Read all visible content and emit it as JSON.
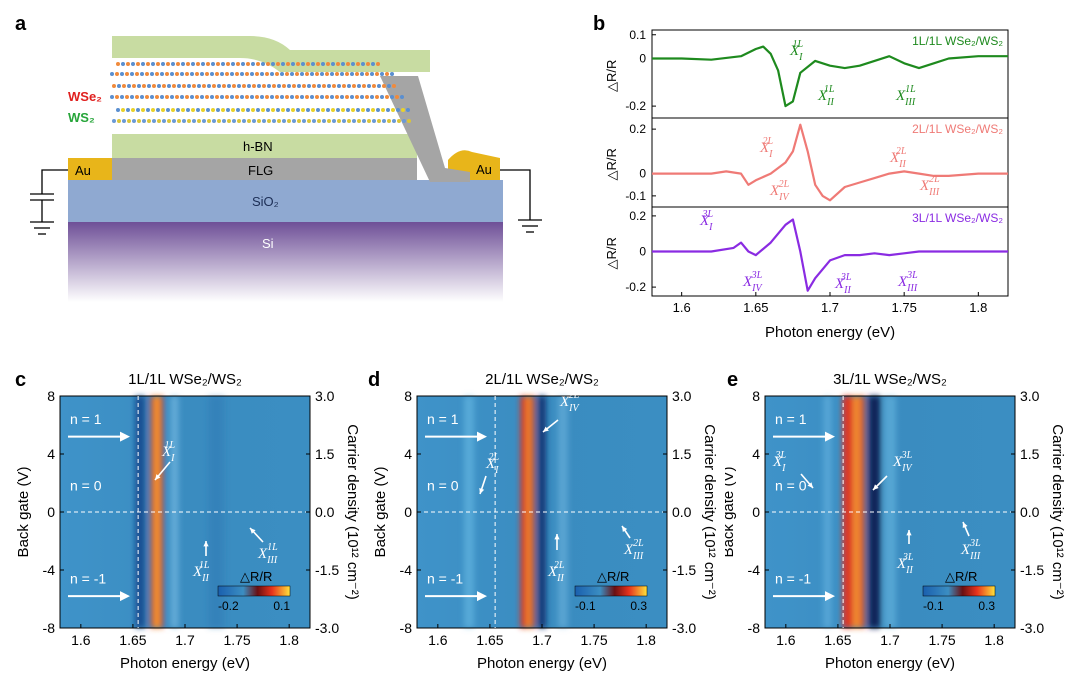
{
  "panel_labels": {
    "a": "a",
    "b": "b",
    "c": "c",
    "d": "d",
    "e": "e"
  },
  "device": {
    "wse2": "WSe₂",
    "ws2": "WS₂",
    "hbn": "h-BN",
    "flg": "FLG",
    "au_left": "Au",
    "au_right": "Au",
    "sio2": "SiO₂",
    "si": "Si"
  },
  "colors": {
    "green": "#1e8a1e",
    "pink": "#ef7a76",
    "purple": "#8a2be2",
    "wse2_label": "#e0201f",
    "ws2_label": "#27a53a",
    "hbn": "#c8dca2",
    "flg": "#a5a5a5",
    "au": "#e8b51a",
    "sio2": "#8fa9d1",
    "si": "#6e4f97"
  },
  "spectra": {
    "xlabel": "Photon energy (eV)",
    "ylabel": "△R/R",
    "x_ticks": [
      "1.6",
      "1.65",
      "1.7",
      "1.75",
      "1.8"
    ],
    "rows": [
      {
        "sample": "1L/1L  WSe₂/WS₂",
        "yticks": [
          "0.1",
          "0",
          "-0.2"
        ],
        "labels": {
          "I": "X",
          "II": "X",
          "III": "X"
        },
        "sup": "1L"
      },
      {
        "sample": "2L/1L  WSe₂/WS₂",
        "yticks": [
          "0.2",
          "0",
          "-0.1"
        ],
        "sup": "2L"
      },
      {
        "sample": "3L/1L  WSe₂/WS₂",
        "yticks": [
          "0.2",
          "0",
          "-0.2"
        ],
        "sup": "3L"
      }
    ]
  },
  "chart_data": [
    {
      "type": "line",
      "title": "1L/1L  WSe₂/WS₂",
      "xlabel": "Photon energy (eV)",
      "ylabel": "△R/R",
      "xlim": [
        1.58,
        1.82
      ],
      "ylim": [
        -0.25,
        0.12
      ],
      "series": [
        {
          "name": "1L/1L WSe₂/WS₂",
          "x": [
            1.58,
            1.6,
            1.62,
            1.64,
            1.65,
            1.655,
            1.66,
            1.665,
            1.67,
            1.675,
            1.68,
            1.69,
            1.7,
            1.71,
            1.72,
            1.73,
            1.74,
            1.75,
            1.76,
            1.77,
            1.78,
            1.8,
            1.82
          ],
          "y": [
            0.0,
            0.0,
            -0.005,
            0.01,
            0.04,
            0.05,
            0.02,
            -0.05,
            -0.2,
            -0.18,
            -0.06,
            -0.01,
            -0.03,
            -0.04,
            -0.03,
            -0.01,
            0.01,
            -0.02,
            -0.04,
            -0.02,
            0.0,
            0.01,
            0.01
          ]
        }
      ]
    },
    {
      "type": "line",
      "title": "2L/1L  WSe₂/WS₂",
      "xlabel": "Photon energy (eV)",
      "ylabel": "△R/R",
      "xlim": [
        1.58,
        1.82
      ],
      "ylim": [
        -0.15,
        0.25
      ],
      "series": [
        {
          "name": "2L/1L WSe₂/WS₂",
          "x": [
            1.58,
            1.6,
            1.62,
            1.63,
            1.64,
            1.645,
            1.65,
            1.66,
            1.67,
            1.675,
            1.68,
            1.685,
            1.69,
            1.695,
            1.7,
            1.71,
            1.72,
            1.73,
            1.74,
            1.75,
            1.76,
            1.77,
            1.78,
            1.8,
            1.82
          ],
          "y": [
            0.0,
            0.0,
            0.0,
            0.01,
            0.0,
            -0.05,
            -0.03,
            0.0,
            0.05,
            0.1,
            0.22,
            0.1,
            -0.05,
            -0.1,
            -0.12,
            -0.06,
            -0.04,
            -0.02,
            0.0,
            0.01,
            0.0,
            -0.01,
            -0.01,
            0.0,
            0.0
          ]
        }
      ]
    },
    {
      "type": "line",
      "title": "3L/1L  WSe₂/WS₂",
      "xlabel": "Photon energy (eV)",
      "ylabel": "△R/R",
      "xlim": [
        1.58,
        1.82
      ],
      "ylim": [
        -0.25,
        0.25
      ],
      "series": [
        {
          "name": "3L/1L WSe₂/WS₂",
          "x": [
            1.58,
            1.6,
            1.62,
            1.635,
            1.64,
            1.645,
            1.65,
            1.66,
            1.67,
            1.675,
            1.68,
            1.685,
            1.69,
            1.7,
            1.71,
            1.72,
            1.73,
            1.74,
            1.75,
            1.76,
            1.77,
            1.78,
            1.8,
            1.82
          ],
          "y": [
            0.0,
            0.0,
            0.0,
            0.02,
            0.05,
            0.0,
            -0.02,
            0.05,
            0.15,
            0.18,
            0.0,
            -0.22,
            -0.15,
            -0.05,
            -0.02,
            -0.02,
            -0.01,
            -0.02,
            -0.01,
            0.0,
            0.0,
            0.0,
            0.0,
            0.0
          ]
        }
      ]
    }
  ],
  "maps": {
    "xlabel": "Photon energy (eV)",
    "ylabel_left": "Back gate (V)",
    "ylabel_right": "Carrier density (10¹² cm⁻²)",
    "x_ticks": [
      "1.6",
      "1.65",
      "1.7",
      "1.75",
      "1.8"
    ],
    "y_ticks_left": [
      "8",
      "4",
      "0",
      "-4",
      "-8"
    ],
    "y_ticks_right": [
      "3.0",
      "1.5",
      "0.0",
      "-1.5",
      "-3.0"
    ],
    "n_plus": "n = 1",
    "n_zero": "n = 0",
    "n_minus": "n = -1",
    "cb_label": "△R/R",
    "c": {
      "title": "1L/1L  WSe₂/WS₂",
      "cb_min": "-0.2",
      "cb_max": "0.1",
      "sup": "1L"
    },
    "d": {
      "title": "2L/1L  WSe₂/WS₂",
      "cb_min": "-0.1",
      "cb_max": "0.3",
      "sup": "2L"
    },
    "e": {
      "title": "3L/1L  WSe₂/WS₂",
      "cb_min": "-0.1",
      "cb_max": "0.3",
      "sup": "3L"
    }
  },
  "exciton": {
    "X": "X",
    "I": "I",
    "II": "II",
    "III": "III",
    "IV": "IV"
  }
}
